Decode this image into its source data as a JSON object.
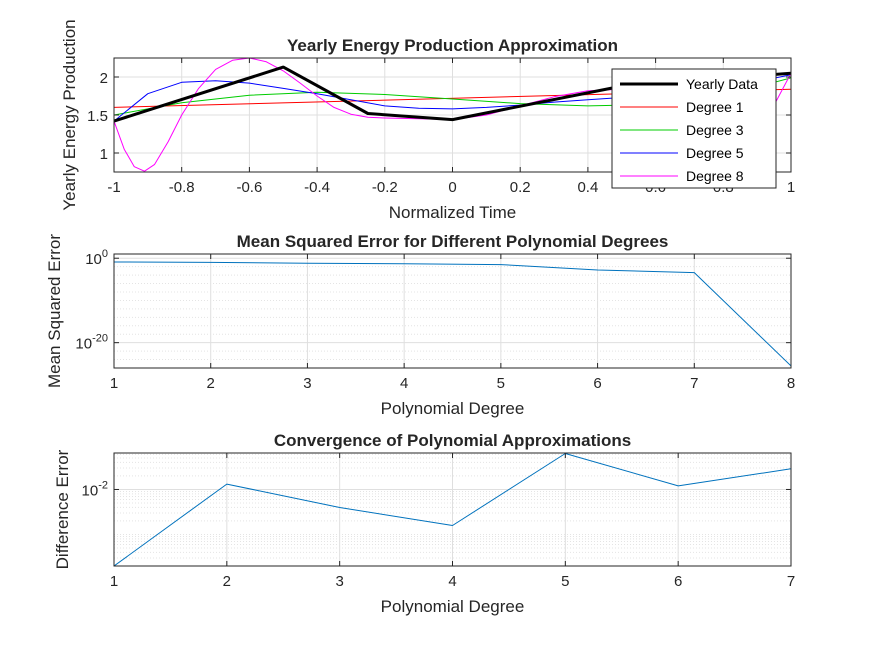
{
  "chart_data": [
    {
      "type": "line",
      "title": "Yearly Energy Production Approximation",
      "xlabel": "Normalized Time",
      "ylabel": "Yearly Energy Production",
      "xlim": [
        -1,
        1
      ],
      "ylim": [
        0.75,
        2.25
      ],
      "xticks": [
        "-1",
        "-0.8",
        "-0.6",
        "-0.4",
        "-0.2",
        "0",
        "0.2",
        "0.4",
        "0.6",
        "0.8",
        "1"
      ],
      "yticks": [
        "1",
        "1.5",
        "2"
      ],
      "grid": true,
      "legend_position": "top-right",
      "series": [
        {
          "name": "Yearly Data",
          "color": "#000000",
          "x": [
            -1,
            -0.5,
            -0.25,
            0,
            0.5,
            1
          ],
          "y": [
            1.42,
            2.13,
            1.52,
            1.44,
            1.88,
            2.05
          ]
        },
        {
          "name": "Degree 1",
          "color": "#ff0000",
          "x": [
            -1,
            1
          ],
          "y": [
            1.6,
            1.84
          ]
        },
        {
          "name": "Degree 3",
          "color": "#00cc00",
          "x": [
            -1,
            -0.8,
            -0.6,
            -0.4,
            -0.2,
            0,
            0.2,
            0.4,
            0.6,
            0.8,
            1
          ],
          "y": [
            1.5,
            1.66,
            1.76,
            1.8,
            1.77,
            1.71,
            1.65,
            1.62,
            1.64,
            1.75,
            1.99
          ]
        },
        {
          "name": "Degree 5",
          "color": "#0000ff",
          "x": [
            -1,
            -0.9,
            -0.8,
            -0.7,
            -0.6,
            -0.5,
            -0.4,
            -0.3,
            -0.2,
            -0.1,
            0,
            0.1,
            0.2,
            0.3,
            0.4,
            0.5,
            0.6,
            0.7,
            0.8,
            0.9,
            1
          ],
          "y": [
            1.42,
            1.78,
            1.93,
            1.95,
            1.92,
            1.85,
            1.78,
            1.7,
            1.62,
            1.59,
            1.58,
            1.6,
            1.63,
            1.67,
            1.7,
            1.73,
            1.76,
            1.8,
            1.86,
            1.94,
            2.03
          ]
        },
        {
          "name": "Degree 8",
          "color": "#ff00ff",
          "x": [
            -1,
            -0.97,
            -0.94,
            -0.91,
            -0.88,
            -0.84,
            -0.8,
            -0.75,
            -0.7,
            -0.65,
            -0.6,
            -0.55,
            -0.5,
            -0.45,
            -0.4,
            -0.35,
            -0.3,
            -0.25,
            -0.2,
            -0.1,
            0,
            0.1,
            0.2,
            0.3,
            0.4,
            0.5,
            0.6,
            0.7,
            0.8,
            0.85,
            0.9,
            0.95,
            1
          ],
          "y": [
            1.42,
            1.05,
            0.82,
            0.76,
            0.85,
            1.15,
            1.5,
            1.85,
            2.1,
            2.22,
            2.25,
            2.2,
            2.08,
            1.92,
            1.75,
            1.6,
            1.51,
            1.47,
            1.46,
            1.45,
            1.44,
            1.5,
            1.62,
            1.74,
            1.82,
            1.84,
            1.78,
            1.64,
            1.52,
            1.47,
            1.5,
            1.63,
            2.05
          ]
        }
      ]
    },
    {
      "type": "line",
      "title": "Mean Squared Error for Different Polynomial Degrees",
      "xlabel": "Polynomial Degree",
      "ylabel": "Mean Squared Error",
      "xlim": [
        1,
        8
      ],
      "ylog": true,
      "ylim_log10": [
        -26,
        1
      ],
      "xticks": [
        "1",
        "2",
        "3",
        "4",
        "5",
        "6",
        "7",
        "8"
      ],
      "ytick_values_log10": [
        0,
        -20
      ],
      "grid": true,
      "series": [
        {
          "color": "#0072bd",
          "x": [
            1,
            2,
            3,
            4,
            5,
            6,
            7,
            8
          ],
          "y_log10": [
            -0.9,
            -1.0,
            -1.2,
            -1.3,
            -1.5,
            -2.8,
            -3.4,
            -25.5
          ]
        }
      ]
    },
    {
      "type": "line",
      "title": "Convergence of Polynomial Approximations",
      "xlabel": "Polynomial Degree",
      "ylabel": "Difference Error",
      "xlim": [
        1,
        7
      ],
      "ylog": true,
      "ylim_log10": [
        -3.7,
        -1.19
      ],
      "xticks": [
        "1",
        "2",
        "3",
        "4",
        "5",
        "6",
        "7"
      ],
      "ytick_values_log10": [
        -2
      ],
      "grid": true,
      "series": [
        {
          "color": "#0072bd",
          "x": [
            1,
            2,
            3,
            4,
            5,
            6,
            7
          ],
          "y_log10": [
            -3.7,
            -1.88,
            -2.4,
            -2.8,
            -1.2,
            -1.92,
            -1.54
          ]
        }
      ]
    }
  ]
}
